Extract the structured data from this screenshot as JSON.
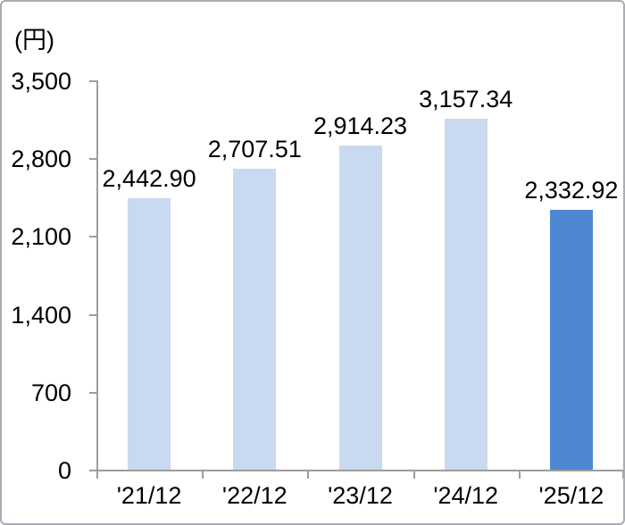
{
  "chart_data": {
    "type": "bar",
    "unit_label": "(円)",
    "categories": [
      "'21/12",
      "'22/12",
      "'23/12",
      "'24/12",
      "'25/12"
    ],
    "values": [
      2442.9,
      2707.51,
      2914.23,
      3157.34,
      2332.92
    ],
    "value_labels": [
      "2,442.90",
      "2,707.51",
      "2,914.23",
      "3,157.34",
      "2,332.92"
    ],
    "title": "",
    "xlabel": "",
    "ylabel": "(円)",
    "ylim": [
      0,
      3500
    ],
    "ytick_step": 700,
    "ytick_labels": [
      "0",
      "700",
      "1,400",
      "2,100",
      "2,800",
      "3,500"
    ],
    "grid": false,
    "legend": false,
    "colors": {
      "bar_default": "#c8d9f0",
      "bar_highlight": "#4e87d2",
      "axis": "#9d9d9d",
      "text": "#000000",
      "frame_border": "#a9aeb4",
      "background": "#ffffff"
    },
    "bar_colors": [
      "#c8d9f0",
      "#c8d9f0",
      "#c8d9f0",
      "#c8d9f0",
      "#4e87d2"
    ]
  }
}
